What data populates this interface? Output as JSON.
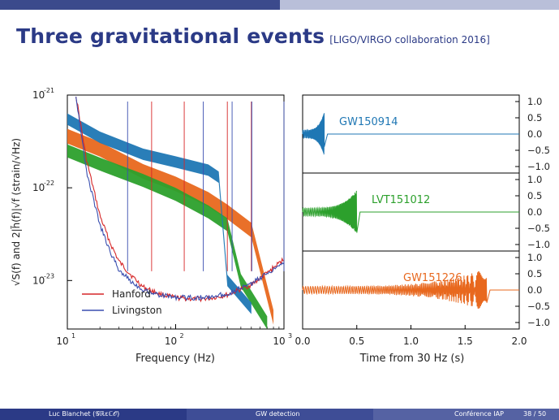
{
  "slide": {
    "title": "Three gravitational events",
    "citation": "[LIGO/VIRGO collaboration 2016]"
  },
  "footer": {
    "author": "Luc Blanchet (𝒢ℝεℂ𝒪)",
    "topic": "GW detection",
    "venue": "Conférence IAP",
    "page": "38 / 50"
  },
  "colors": {
    "hanford": "#d62728",
    "livingston": "#3a4fb0",
    "gw150914": "#1f77b4",
    "lvt151012": "#2ca02c",
    "gw151226": "#e8681e",
    "title": "#2b3a86"
  },
  "chart_data": [
    {
      "type": "line",
      "ylabel": "√S(f) and 2|h̃(f)|√f (strain/√Hz)",
      "xlabel": "Frequency (Hz)",
      "x_scale": "log",
      "y_scale": "log",
      "xlim": [
        10,
        1000
      ],
      "ylim": [
        3e-24,
        1e-21
      ],
      "x_ticks": [
        {
          "base": "10",
          "exp": "1"
        },
        {
          "base": "10",
          "exp": "2"
        },
        {
          "base": "10",
          "exp": "3"
        }
      ],
      "y_ticks": [
        {
          "base": "10",
          "exp": "-21"
        },
        {
          "base": "10",
          "exp": "-22"
        },
        {
          "base": "10",
          "exp": "-23"
        }
      ],
      "legend": {
        "placement": "bottom-left",
        "entries": [
          "Hanford",
          "Livingston"
        ]
      },
      "series": [
        {
          "name": "Hanford",
          "x": [
            12,
            15,
            20,
            25,
            30,
            40,
            50,
            70,
            100,
            150,
            200,
            300,
            500,
            700,
            1000
          ],
          "y": [
            1e-21,
            2e-22,
            5e-23,
            2.5e-23,
            1.6e-23,
            1.1e-23,
            8.5e-24,
            7.2e-24,
            6.5e-24,
            6.3e-24,
            6.4e-24,
            7e-24,
            9e-24,
            1.2e-23,
            1.7e-23
          ]
        },
        {
          "name": "Livingston",
          "x": [
            12,
            15,
            20,
            25,
            30,
            40,
            50,
            70,
            100,
            150,
            200,
            300,
            500,
            700,
            1000
          ],
          "y": [
            1e-21,
            1.5e-22,
            4e-23,
            2e-23,
            1.3e-23,
            9.5e-24,
            8e-24,
            7e-24,
            6.6e-24,
            6.5e-24,
            6.6e-24,
            7.2e-24,
            9.2e-24,
            1.2e-23,
            1.6e-23
          ]
        },
        {
          "name": "",
          "x": [
            10,
            20,
            50,
            100,
            200,
            250,
            300,
            500
          ],
          "y": [
            5.5e-22,
            3.5e-22,
            2.3e-22,
            1.9e-22,
            1.55e-22,
            1.3e-22,
            1e-23,
            5e-24
          ]
        },
        {
          "name": "",
          "x": [
            10,
            20,
            50,
            100,
            200,
            300,
            400,
            700
          ],
          "y": [
            2.5e-22,
            1.8e-22,
            1.2e-22,
            8.5e-23,
            5.5e-23,
            4e-23,
            1e-23,
            3.5e-24
          ]
        },
        {
          "name": "",
          "x": [
            10,
            20,
            50,
            100,
            200,
            300,
            500,
            800
          ],
          "y": [
            3.6e-22,
            2.6e-22,
            1.5e-22,
            1.1e-22,
            7.5e-23,
            5.5e-23,
            3.5e-23,
            4e-24
          ]
        }
      ]
    },
    {
      "type": "line",
      "xlabel": "Time from 30 Hz (s)",
      "xlim": [
        0.0,
        2.0
      ],
      "x_ticks": [
        "0.0",
        "0.5",
        "1.0",
        "1.5",
        "2.0"
      ],
      "y_ticks": [
        "1.0",
        "0.5",
        "0.0",
        "−0.5",
        "−1.0"
      ],
      "ylim": [
        -1.2,
        1.2
      ],
      "panels": [
        {
          "name": "GW150914",
          "duration": 0.2,
          "y_range": [
            -1.0,
            1.0
          ]
        },
        {
          "name": "LVT151012",
          "duration": 0.5,
          "y_range": [
            -1.0,
            1.0
          ]
        },
        {
          "name": "GW151226",
          "duration": 1.7,
          "y_range": [
            -1.0,
            1.0
          ]
        }
      ]
    }
  ]
}
